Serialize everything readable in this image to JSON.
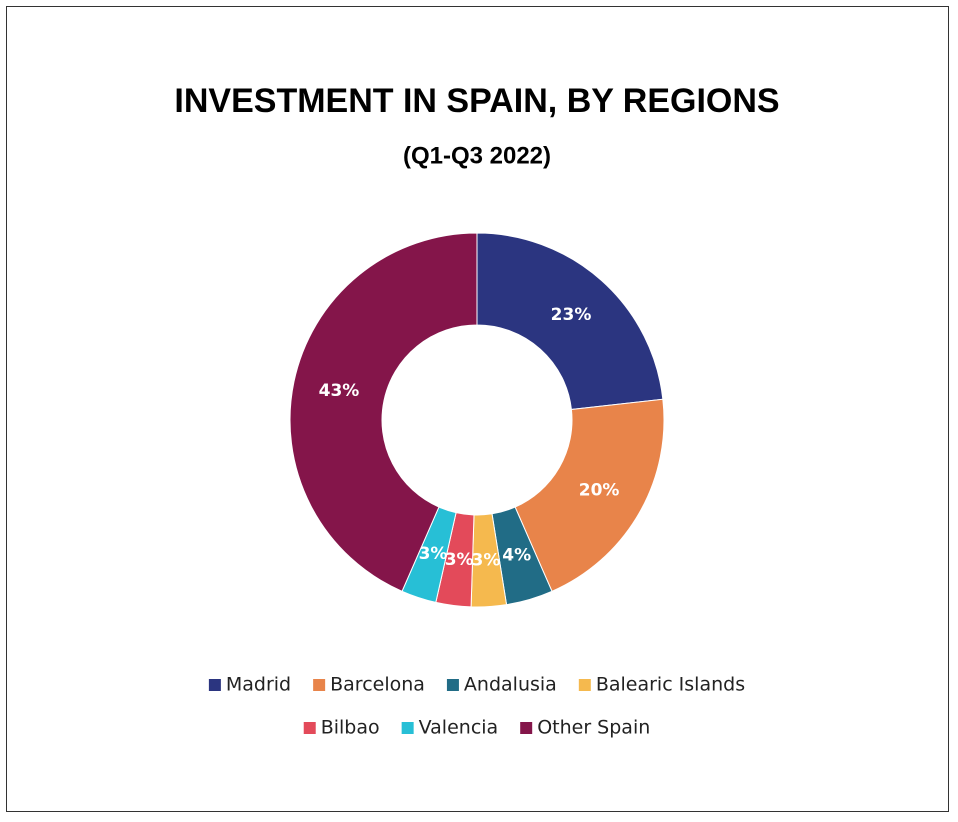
{
  "chart_data": {
    "type": "donut",
    "title": "INVESTMENT IN SPAIN, BY REGIONS",
    "subtitle": "(Q1-Q3 2022)",
    "categories": [
      "Madrid",
      "Barcelona",
      "Andalusia",
      "Balearic Islands",
      "Bilbao",
      "Valencia",
      "Other Spain"
    ],
    "values": [
      23,
      20,
      4,
      3,
      3,
      3,
      43
    ],
    "value_labels": [
      "23%",
      "20%",
      "4%",
      "3%",
      "3%",
      "3%",
      "43%"
    ],
    "colors": [
      "#2b3580",
      "#e8844a",
      "#216c86",
      "#f5b94e",
      "#e34a5a",
      "#27bfd6",
      "#84154a"
    ],
    "legend": "bottom"
  }
}
